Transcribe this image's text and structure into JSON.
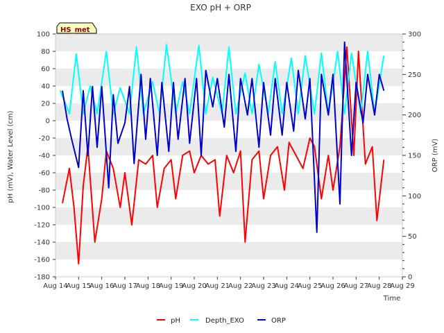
{
  "chart_data": {
    "type": "line",
    "title": "EXO pH + ORP",
    "badge": "HS_met",
    "xlabel": "Time",
    "ylabel_left": "pH (mV), Water Level (cm)",
    "ylabel_right": "ORP (mV)",
    "x_ticks": [
      "Aug 14",
      "Aug 15",
      "Aug 16",
      "Aug 17",
      "Aug 18",
      "Aug 19",
      "Aug 20",
      "Aug 21",
      "Aug 22",
      "Aug 23",
      "Aug 24",
      "Aug 25",
      "Aug 26",
      "Aug 27",
      "Aug 28",
      "Aug 29"
    ],
    "x_range_days": [
      0,
      15
    ],
    "ylim_left": [
      -180,
      100
    ],
    "yticks_left": [
      100,
      80,
      60,
      40,
      20,
      0,
      -20,
      -40,
      -60,
      -80,
      -100,
      -120,
      -140,
      -160,
      -180
    ],
    "ylim_right": [
      0,
      300
    ],
    "yticks_right": [
      300,
      250,
      200,
      150,
      100,
      50,
      0
    ],
    "grid": "horizontal bands",
    "legend_position": "bottom-center",
    "colors": {
      "pH": "#ff0000",
      "Depth_EXO": "#00ffff",
      "ORP": "#0000cc",
      "band": "#ebebeb",
      "badge_bg": "#ffffc0"
    },
    "series": [
      {
        "name": "pH",
        "axis": "left",
        "x_days": [
          0.3,
          0.6,
          0.8,
          1.0,
          1.2,
          1.4,
          1.7,
          2.0,
          2.2,
          2.5,
          2.8,
          3.0,
          3.3,
          3.6,
          3.9,
          4.2,
          4.4,
          4.7,
          5.0,
          5.2,
          5.5,
          5.8,
          6.0,
          6.3,
          6.6,
          6.9,
          7.1,
          7.4,
          7.7,
          8.0,
          8.2,
          8.5,
          8.8,
          9.0,
          9.3,
          9.6,
          9.9,
          10.1,
          10.4,
          10.7,
          11.0,
          11.2,
          11.5,
          11.8,
          12.0,
          12.3,
          12.6,
          12.9,
          13.1,
          13.4,
          13.7,
          13.9,
          14.2
        ],
        "values": [
          -95,
          -55,
          -100,
          -165,
          -75,
          -30,
          -140,
          -90,
          -35,
          -55,
          -100,
          -60,
          -120,
          -45,
          -50,
          -40,
          -100,
          -55,
          -45,
          -90,
          -40,
          -35,
          -60,
          -40,
          -50,
          -45,
          -110,
          -40,
          -60,
          -35,
          -140,
          -45,
          -35,
          -90,
          -40,
          -30,
          -80,
          -25,
          -40,
          -55,
          -20,
          -30,
          -90,
          -40,
          -80,
          -30,
          85,
          -40,
          80,
          -50,
          -30,
          -115,
          -45
        ]
      },
      {
        "name": "Depth_EXO",
        "axis": "left",
        "x_days": [
          0.2,
          0.6,
          0.9,
          1.2,
          1.5,
          1.8,
          2.2,
          2.5,
          2.8,
          3.2,
          3.5,
          3.8,
          4.2,
          4.5,
          4.8,
          5.2,
          5.5,
          5.8,
          6.2,
          6.5,
          6.8,
          7.2,
          7.5,
          7.8,
          8.2,
          8.5,
          8.8,
          9.2,
          9.5,
          9.8,
          10.2,
          10.5,
          10.8,
          11.2,
          11.5,
          11.8,
          12.2,
          12.5,
          12.8,
          13.2,
          13.5,
          13.8,
          14.2
        ],
        "values": [
          35,
          8,
          77,
          8,
          40,
          8,
          80,
          8,
          38,
          8,
          85,
          8,
          45,
          8,
          88,
          8,
          45,
          8,
          87,
          8,
          50,
          8,
          85,
          8,
          55,
          8,
          65,
          8,
          68,
          8,
          72,
          8,
          75,
          8,
          78,
          8,
          80,
          8,
          78,
          8,
          80,
          8,
          75
        ]
      },
      {
        "name": "ORP",
        "axis": "right",
        "x_days": [
          0.3,
          0.5,
          0.7,
          1.0,
          1.2,
          1.4,
          1.6,
          1.8,
          2.0,
          2.3,
          2.5,
          2.7,
          3.0,
          3.2,
          3.4,
          3.7,
          3.9,
          4.1,
          4.4,
          4.6,
          4.9,
          5.1,
          5.3,
          5.6,
          5.8,
          6.1,
          6.3,
          6.5,
          6.8,
          7.0,
          7.3,
          7.5,
          7.8,
          8.0,
          8.3,
          8.5,
          8.8,
          9.0,
          9.3,
          9.5,
          9.8,
          10.0,
          10.3,
          10.5,
          10.8,
          11.0,
          11.3,
          11.5,
          11.8,
          12.0,
          12.3,
          12.5,
          12.8,
          13.0,
          13.3,
          13.5,
          13.8,
          14.0,
          14.2
        ],
        "values": [
          230,
          195,
          170,
          135,
          230,
          150,
          235,
          160,
          235,
          110,
          225,
          165,
          190,
          235,
          140,
          250,
          170,
          245,
          150,
          240,
          155,
          240,
          170,
          245,
          165,
          245,
          150,
          255,
          210,
          245,
          185,
          250,
          155,
          245,
          200,
          245,
          160,
          240,
          175,
          245,
          175,
          240,
          180,
          255,
          195,
          245,
          55,
          250,
          200,
          250,
          90,
          290,
          150,
          240,
          190,
          250,
          200,
          250,
          230
        ]
      }
    ]
  },
  "legend": {
    "items": [
      {
        "label": "pH",
        "color": "#ff0000"
      },
      {
        "label": "Depth_EXO",
        "color": "#00ffff"
      },
      {
        "label": "ORP",
        "color": "#0000cc"
      }
    ]
  }
}
